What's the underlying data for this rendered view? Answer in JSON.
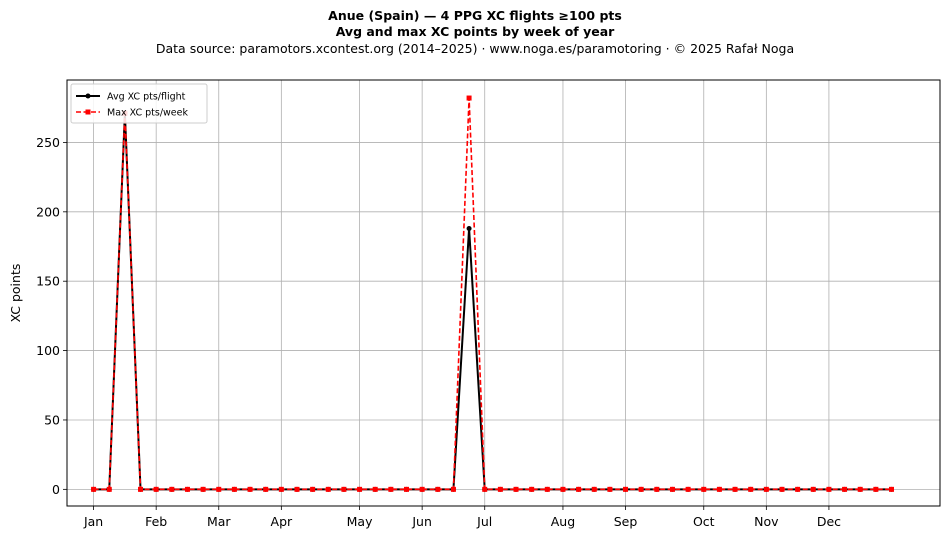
{
  "chart_data": {
    "type": "line",
    "title": "Anue (Spain)  —  4 PPG XC flights ≥100 pts",
    "subtitle": "Avg and max XC points by week of year",
    "source": "Data source: paramotors.xcontest.org (2014–2025)  ·  www.noga.es/paramotoring  ·  © 2025 Rafał Noga",
    "xlabel": "",
    "ylabel": "XC points",
    "ylim": [
      -12,
      295
    ],
    "xlim": [
      -1.7,
      54.1
    ],
    "yticks": [
      0,
      50,
      100,
      150,
      200,
      250
    ],
    "grid": true,
    "legend_position": "top-left",
    "x_ticks": [
      {
        "week": 0,
        "label": "Jan"
      },
      {
        "week": 4,
        "label": "Feb"
      },
      {
        "week": 8,
        "label": "Mar"
      },
      {
        "week": 12,
        "label": "Apr"
      },
      {
        "week": 17,
        "label": "May"
      },
      {
        "week": 21,
        "label": "Jun"
      },
      {
        "week": 25,
        "label": "Jul"
      },
      {
        "week": 30,
        "label": "Aug"
      },
      {
        "week": 34,
        "label": "Sep"
      },
      {
        "week": 39,
        "label": "Oct"
      },
      {
        "week": 43,
        "label": "Nov"
      },
      {
        "week": 47,
        "label": "Dec"
      }
    ],
    "x": [
      0,
      1,
      2,
      3,
      4,
      5,
      6,
      7,
      8,
      9,
      10,
      11,
      12,
      13,
      14,
      15,
      16,
      17,
      18,
      19,
      20,
      21,
      22,
      23,
      24,
      25,
      26,
      27,
      28,
      29,
      30,
      31,
      32,
      33,
      34,
      35,
      36,
      37,
      38,
      39,
      40,
      41,
      42,
      43,
      44,
      45,
      46,
      47,
      48,
      49,
      50,
      51
    ],
    "series": [
      {
        "name": "Avg XC pts/flight",
        "color": "#000000",
        "style": "solid",
        "values": [
          0,
          0,
          271,
          0,
          0,
          0,
          0,
          0,
          0,
          0,
          0,
          0,
          0,
          0,
          0,
          0,
          0,
          0,
          0,
          0,
          0,
          0,
          0,
          0,
          188,
          0,
          0,
          0,
          0,
          0,
          0,
          0,
          0,
          0,
          0,
          0,
          0,
          0,
          0,
          0,
          0,
          0,
          0,
          0,
          0,
          0,
          0,
          0,
          0,
          0,
          0,
          0
        ]
      },
      {
        "name": "Max XC pts/week",
        "color": "#ff0000",
        "style": "dashed",
        "values": [
          0,
          0,
          271,
          0,
          0,
          0,
          0,
          0,
          0,
          0,
          0,
          0,
          0,
          0,
          0,
          0,
          0,
          0,
          0,
          0,
          0,
          0,
          0,
          0,
          282,
          0,
          0,
          0,
          0,
          0,
          0,
          0,
          0,
          0,
          0,
          0,
          0,
          0,
          0,
          0,
          0,
          0,
          0,
          0,
          0,
          0,
          0,
          0,
          0,
          0,
          0,
          0
        ]
      }
    ]
  }
}
